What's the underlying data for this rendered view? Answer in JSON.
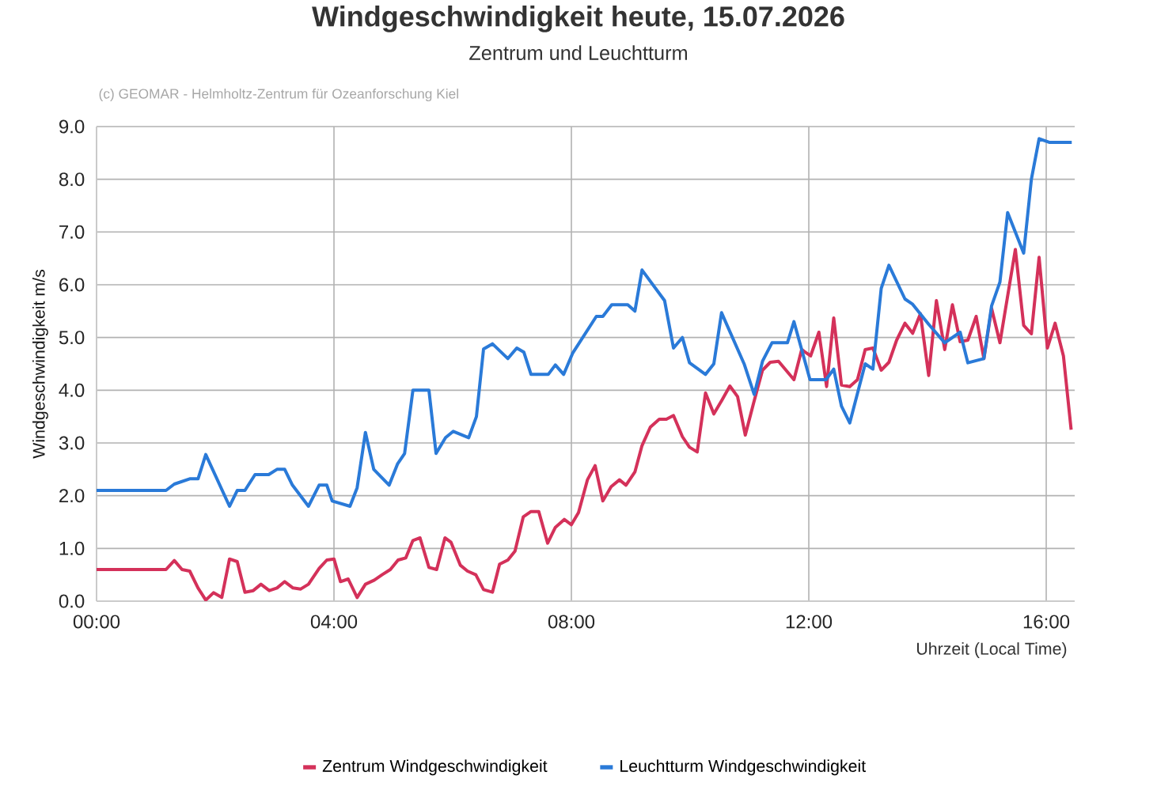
{
  "chart_data": {
    "type": "line",
    "title": "Windgeschwindigkeit heute, 15.07.2026",
    "subtitle": "Zentrum und Leuchtturm",
    "annotations": [
      "(c) GEOMAR - Helmholtz-Zentrum für Ozeanforschung Kiel"
    ],
    "xlabel": "Uhrzeit (Local Time)",
    "ylabel": "Windgeschwindigkeit m/s",
    "xlim": [
      0,
      16.48
    ],
    "ylim": [
      0,
      9
    ],
    "xticks": [
      {
        "value": 0,
        "label": "00:00"
      },
      {
        "value": 4,
        "label": "04:00"
      },
      {
        "value": 8,
        "label": "08:00"
      },
      {
        "value": 12,
        "label": "12:00"
      },
      {
        "value": 16,
        "label": "16:00"
      }
    ],
    "yticks": [
      {
        "value": 0,
        "label": "0.0"
      },
      {
        "value": 1,
        "label": "1.0"
      },
      {
        "value": 2,
        "label": "2.0"
      },
      {
        "value": 3,
        "label": "3.0"
      },
      {
        "value": 4,
        "label": "4.0"
      },
      {
        "value": 5,
        "label": "5.0"
      },
      {
        "value": 6,
        "label": "6.0"
      },
      {
        "value": 7,
        "label": "7.0"
      },
      {
        "value": 8,
        "label": "8.0"
      },
      {
        "value": 9,
        "label": "9.0"
      }
    ],
    "grid": true,
    "legend": "bottom",
    "series": [
      {
        "name": "Zentrum Windgeschwindigkeit",
        "color": "#d4315a",
        "x": [
          0,
          1.17,
          1.31,
          1.44,
          1.57,
          1.71,
          1.84,
          1.97,
          2.11,
          2.24,
          2.37,
          2.5,
          2.64,
          2.77,
          2.91,
          3.04,
          3.17,
          3.31,
          3.44,
          3.57,
          3.75,
          3.88,
          4.0,
          4.11,
          4.24,
          4.39,
          4.53,
          4.68,
          4.81,
          4.95,
          5.08,
          5.21,
          5.33,
          5.45,
          5.6,
          5.73,
          5.87,
          5.97,
          6.13,
          6.25,
          6.39,
          6.52,
          6.67,
          6.79,
          6.93,
          7.05,
          7.19,
          7.32,
          7.45,
          7.6,
          7.73,
          7.88,
          8.0,
          8.12,
          8.27,
          8.4,
          8.53,
          8.67,
          8.81,
          8.92,
          9.07,
          9.19,
          9.33,
          9.48,
          9.6,
          9.72,
          9.87,
          9.99,
          10.12,
          10.26,
          10.4,
          10.53,
          10.67,
          10.8,
          10.93,
          11.08,
          11.22,
          11.35,
          11.49,
          11.75,
          11.88,
          12.03,
          12.17,
          12.3,
          12.42,
          12.55,
          12.69,
          12.82,
          12.95,
          13.08,
          13.22,
          13.35,
          13.48,
          13.62,
          13.75,
          13.88,
          14.02,
          14.15,
          14.29,
          14.42,
          14.55,
          14.68,
          14.82,
          14.95,
          15.08,
          15.22,
          15.48,
          15.62,
          15.75,
          15.88,
          16.02,
          16.15,
          16.29,
          16.42
        ],
        "values": [
          0.6,
          0.6,
          0.77,
          0.6,
          0.57,
          0.25,
          0.02,
          0.16,
          0.07,
          0.8,
          0.75,
          0.17,
          0.2,
          0.32,
          0.2,
          0.25,
          0.37,
          0.25,
          0.23,
          0.32,
          0.62,
          0.78,
          0.8,
          0.37,
          0.42,
          0.07,
          0.32,
          0.4,
          0.5,
          0.6,
          0.78,
          0.82,
          1.15,
          1.2,
          0.64,
          0.6,
          1.2,
          1.12,
          0.68,
          0.57,
          0.5,
          0.22,
          0.17,
          0.7,
          0.78,
          0.95,
          1.6,
          1.7,
          1.7,
          1.1,
          1.4,
          1.55,
          1.45,
          1.68,
          2.3,
          2.57,
          1.9,
          2.17,
          2.3,
          2.2,
          2.45,
          2.95,
          3.3,
          3.45,
          3.45,
          3.52,
          3.12,
          2.92,
          2.83,
          3.95,
          3.55,
          3.8,
          4.08,
          3.88,
          3.15,
          3.8,
          4.38,
          4.53,
          4.55,
          4.2,
          4.77,
          4.65,
          5.1,
          4.07,
          5.37,
          4.1,
          4.07,
          4.2,
          4.77,
          4.8,
          4.38,
          4.53,
          4.95,
          5.27,
          5.08,
          5.45,
          4.28,
          5.7,
          4.77,
          5.62,
          4.92,
          4.95,
          5.4,
          4.6,
          5.55,
          4.9,
          6.67,
          5.23,
          5.07,
          6.52,
          4.8,
          5.27,
          4.65,
          3.25
        ]
      },
      {
        "name": "Leuchtturm Windgeschwindigkeit",
        "color": "#2a7ad8",
        "x": [
          0,
          1.17,
          1.31,
          1.57,
          1.71,
          1.84,
          2.24,
          2.37,
          2.5,
          2.67,
          2.9,
          3.04,
          3.17,
          3.3,
          3.57,
          3.75,
          3.88,
          3.97,
          4.27,
          4.39,
          4.53,
          4.67,
          4.93,
          5.07,
          5.19,
          5.33,
          5.6,
          5.72,
          5.88,
          6.01,
          6.27,
          6.4,
          6.52,
          6.67,
          6.93,
          7.08,
          7.2,
          7.32,
          7.61,
          7.73,
          7.87,
          8.02,
          8.42,
          8.53,
          8.68,
          8.95,
          9.07,
          9.19,
          9.57,
          9.72,
          9.87,
          9.99,
          10.26,
          10.4,
          10.53,
          10.91,
          11.08,
          11.22,
          11.38,
          11.64,
          11.75,
          12.02,
          12.29,
          12.42,
          12.55,
          12.69,
          12.95,
          13.08,
          13.22,
          13.35,
          13.62,
          13.75,
          14.02,
          14.29,
          14.55,
          14.68,
          14.95,
          15.08,
          15.22,
          15.35,
          15.62,
          15.75,
          15.88,
          16.05,
          16.43
        ],
        "values": [
          2.1,
          2.1,
          2.22,
          2.32,
          2.32,
          2.78,
          1.8,
          2.1,
          2.1,
          2.4,
          2.4,
          2.5,
          2.5,
          2.2,
          1.8,
          2.2,
          2.2,
          1.9,
          1.8,
          2.15,
          3.2,
          2.5,
          2.2,
          2.6,
          2.8,
          4.0,
          4.0,
          2.8,
          3.1,
          3.22,
          3.1,
          3.5,
          4.78,
          4.88,
          4.6,
          4.8,
          4.72,
          4.3,
          4.3,
          4.48,
          4.3,
          4.7,
          5.4,
          5.4,
          5.62,
          5.62,
          5.5,
          6.28,
          5.7,
          4.8,
          5.0,
          4.52,
          4.3,
          4.5,
          5.47,
          4.5,
          3.92,
          4.55,
          4.9,
          4.9,
          5.3,
          4.2,
          4.2,
          4.4,
          3.7,
          3.38,
          4.5,
          4.4,
          5.93,
          6.37,
          5.73,
          5.63,
          5.25,
          4.9,
          5.1,
          4.52,
          4.6,
          5.6,
          6.05,
          7.37,
          6.6,
          8.0,
          8.77,
          8.7,
          8.7
        ]
      }
    ]
  }
}
